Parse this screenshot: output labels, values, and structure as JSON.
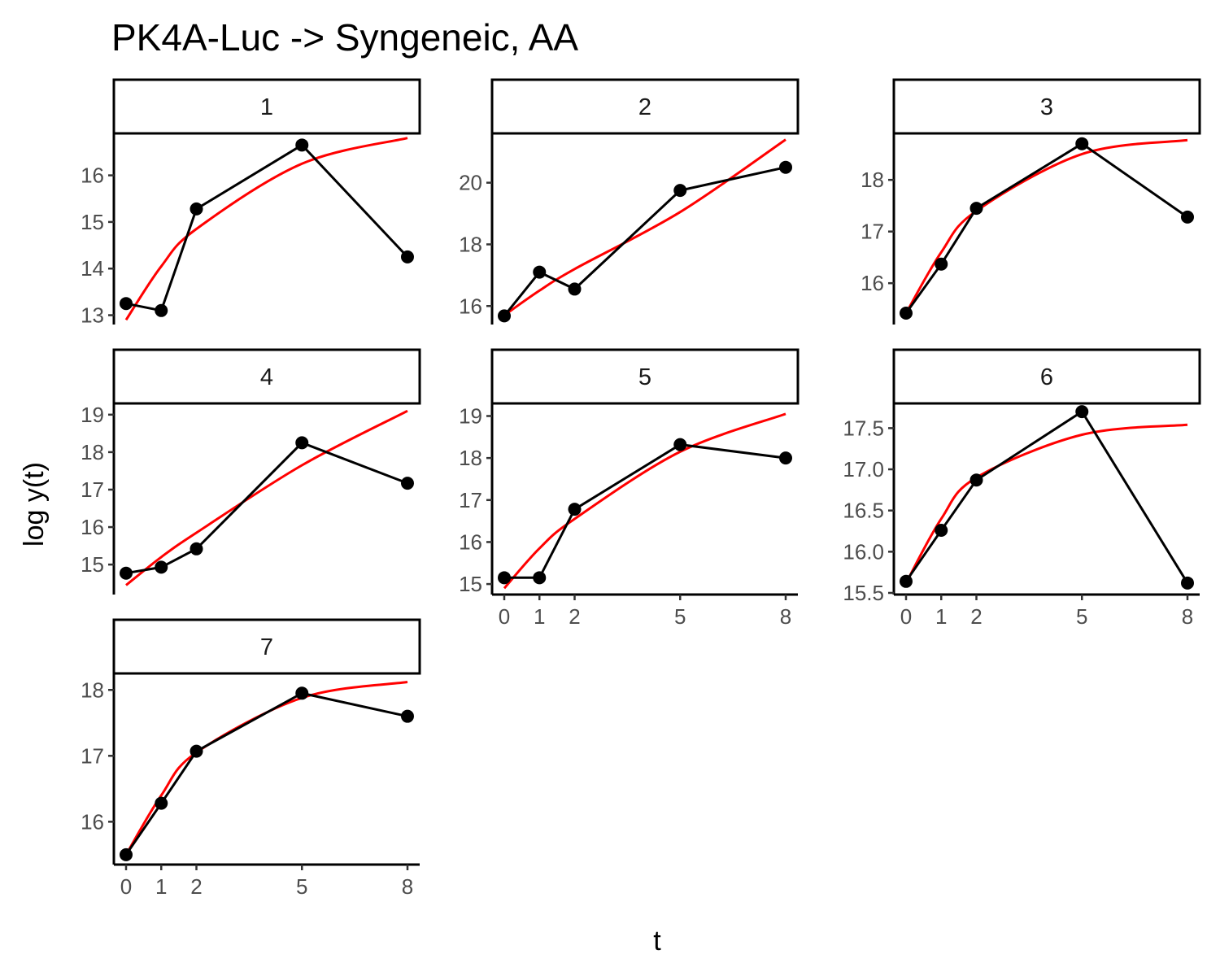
{
  "chart_data": {
    "type": "line",
    "title": "PK4A-Luc -> Syngeneic, AA",
    "xlabel": "t",
    "ylabel": "log y(t)",
    "x_ticks": [
      0,
      1,
      2,
      5,
      8
    ],
    "grid": false,
    "facet_layout": "3 columns, free y scales",
    "colors": {
      "observed": "#000000",
      "fitted": "#ff0000"
    },
    "panels": [
      {
        "label": "1",
        "x": [
          0,
          1,
          2,
          5,
          8
        ],
        "observed": [
          13.25,
          13.1,
          15.28,
          16.65,
          14.25
        ],
        "fitted_curve": {
          "x": [
            0,
            1,
            2,
            5,
            8
          ],
          "y": [
            12.9,
            14.05,
            14.85,
            16.25,
            16.8
          ]
        },
        "ylim": [
          12.8,
          16.9
        ],
        "y_ticks": [
          13,
          14,
          15,
          16
        ]
      },
      {
        "label": "2",
        "x": [
          0,
          1,
          2,
          5,
          8
        ],
        "observed": [
          15.68,
          17.1,
          16.55,
          19.75,
          20.5
        ],
        "fitted_curve": {
          "x": [
            0,
            1,
            2,
            5,
            8
          ],
          "y": [
            15.7,
            16.5,
            17.2,
            19.05,
            21.4
          ]
        },
        "ylim": [
          15.4,
          21.6
        ],
        "y_ticks": [
          16,
          18,
          20
        ]
      },
      {
        "label": "3",
        "x": [
          0,
          1,
          2,
          5,
          8
        ],
        "observed": [
          15.42,
          16.37,
          17.45,
          18.7,
          17.28
        ],
        "fitted_curve": {
          "x": [
            0,
            1,
            2,
            5,
            8
          ],
          "y": [
            15.42,
            16.6,
            17.4,
            18.5,
            18.77
          ]
        },
        "ylim": [
          15.2,
          18.9
        ],
        "y_ticks": [
          16,
          17,
          18
        ]
      },
      {
        "label": "4",
        "x": [
          0,
          1,
          2,
          5,
          8
        ],
        "observed": [
          14.77,
          14.93,
          15.42,
          18.25,
          17.17
        ],
        "fitted_curve": {
          "x": [
            0,
            1,
            2,
            5,
            8
          ],
          "y": [
            14.45,
            15.2,
            15.85,
            17.65,
            19.1
          ]
        },
        "ylim": [
          14.2,
          19.3
        ],
        "y_ticks": [
          15,
          16,
          17,
          18,
          19
        ]
      },
      {
        "label": "5",
        "x": [
          0,
          1,
          2,
          5,
          8
        ],
        "observed": [
          15.15,
          15.15,
          16.78,
          18.32,
          18.0
        ],
        "fitted_curve": {
          "x": [
            0,
            1,
            2,
            5,
            8
          ],
          "y": [
            14.9,
            15.85,
            16.55,
            18.15,
            19.05
          ]
        },
        "ylim": [
          14.75,
          19.3
        ],
        "y_ticks": [
          15,
          16,
          17,
          18,
          19
        ]
      },
      {
        "label": "6",
        "x": [
          0,
          1,
          2,
          5,
          8
        ],
        "observed": [
          15.64,
          16.26,
          16.87,
          17.7,
          15.62
        ],
        "fitted_curve": {
          "x": [
            0,
            1,
            2,
            5,
            8
          ],
          "y": [
            15.62,
            16.4,
            16.9,
            17.42,
            17.54
          ]
        },
        "ylim": [
          15.48,
          17.8
        ],
        "y_ticks": [
          15.5,
          16.0,
          16.5,
          17.0,
          17.5
        ]
      },
      {
        "label": "7",
        "x": [
          0,
          1,
          2,
          5,
          8
        ],
        "observed": [
          15.5,
          16.28,
          17.07,
          17.95,
          17.6
        ],
        "fitted_curve": {
          "x": [
            0,
            1,
            2,
            5,
            8
          ],
          "y": [
            15.5,
            16.4,
            17.05,
            17.88,
            18.12
          ]
        },
        "ylim": [
          15.35,
          18.25
        ],
        "y_ticks": [
          16,
          17,
          18
        ]
      }
    ]
  }
}
